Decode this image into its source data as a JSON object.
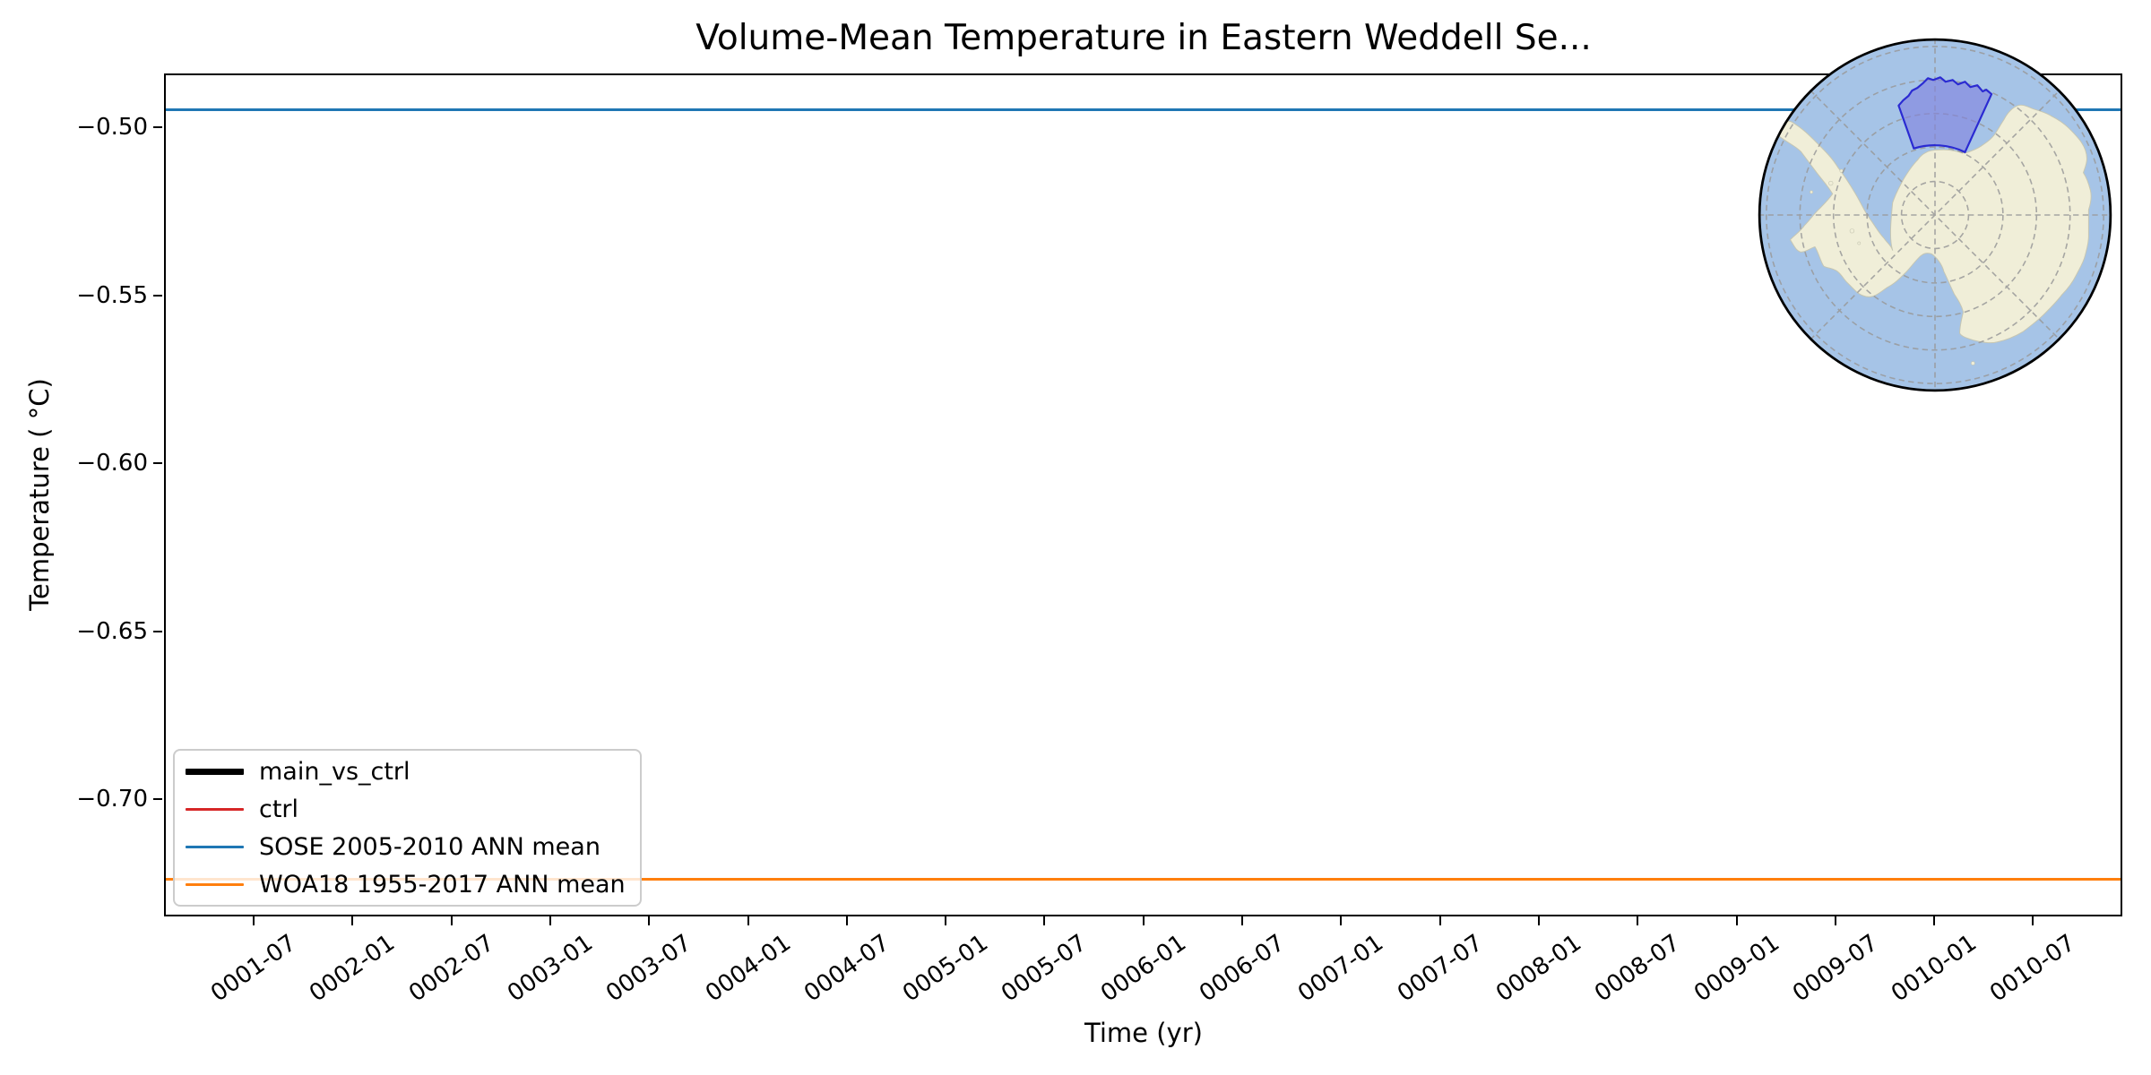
{
  "figure": {
    "title": "Volume-Mean Temperature in Eastern Weddell Se...",
    "xlabel": "Time (yr)",
    "ylabel": "Temperature ( °C)"
  },
  "axes": {
    "xticks": [
      "0001-07",
      "0002-01",
      "0002-07",
      "0003-01",
      "0003-07",
      "0004-01",
      "0004-07",
      "0005-01",
      "0005-07",
      "0006-01",
      "0006-07",
      "0007-01",
      "0007-07",
      "0008-01",
      "0008-07",
      "0009-01",
      "0009-07",
      "0010-01",
      "0010-07"
    ],
    "yticks": [
      {
        "label": "−0.50",
        "value": -0.5
      },
      {
        "label": "−0.55",
        "value": -0.55
      },
      {
        "label": "−0.60",
        "value": -0.6
      },
      {
        "label": "−0.65",
        "value": -0.65
      },
      {
        "label": "−0.70",
        "value": -0.7
      }
    ],
    "ylim": [
      -0.735,
      -0.4835
    ]
  },
  "legend": {
    "items": [
      {
        "label": "main_vs_ctrl",
        "color": "#000000",
        "line_thickness": 7
      },
      {
        "label": "ctrl",
        "color": "#d62728",
        "line_thickness": 3
      },
      {
        "label": "SOSE 2005-2010 ANN mean",
        "color": "#1f77b4",
        "line_thickness": 3
      },
      {
        "label": "WOA18 1955-2017 ANN mean",
        "color": "#ff7f0e",
        "line_thickness": 3
      }
    ]
  },
  "chart_data": {
    "type": "line",
    "title": "Volume-Mean Temperature in Eastern Weddell Se...",
    "xlabel": "Time (yr)",
    "ylabel": "Temperature (°C)",
    "x_tick_labels": [
      "0001-07",
      "0002-01",
      "0002-07",
      "0003-01",
      "0003-07",
      "0004-01",
      "0004-07",
      "0005-01",
      "0005-07",
      "0006-01",
      "0006-07",
      "0007-01",
      "0007-07",
      "0008-01",
      "0008-07",
      "0009-01",
      "0009-07",
      "0010-01",
      "0010-07"
    ],
    "yticks": [
      -0.5,
      -0.55,
      -0.6,
      -0.65,
      -0.7
    ],
    "ylim": [
      -0.735,
      -0.4835
    ],
    "grid": false,
    "legend_position": "lower left",
    "series": [
      {
        "name": "main_vs_ctrl",
        "color": "#000000",
        "style": "thick",
        "visible_points": "none visible in plot range"
      },
      {
        "name": "ctrl",
        "color": "#d62728",
        "visible_points": "none visible in plot range"
      },
      {
        "name": "SOSE 2005-2010 ANN mean",
        "color": "#1f77b4",
        "type": "hline",
        "value": -0.4947
      },
      {
        "name": "WOA18 1955-2017 ANN mean",
        "color": "#ff7f0e",
        "type": "hline",
        "value": -0.724
      }
    ]
  },
  "inset_map": {
    "description": "South polar view of Antarctica with highlighted Eastern Weddell Sea sector",
    "colors": {
      "ocean": "#a6c4e7",
      "land": "#f0eed8",
      "land_edge": "#c6c6b2",
      "region_fill": "#8181e0",
      "region_edge": "#2a2ad2",
      "graticule": "#999999",
      "rim": "#000000"
    }
  }
}
